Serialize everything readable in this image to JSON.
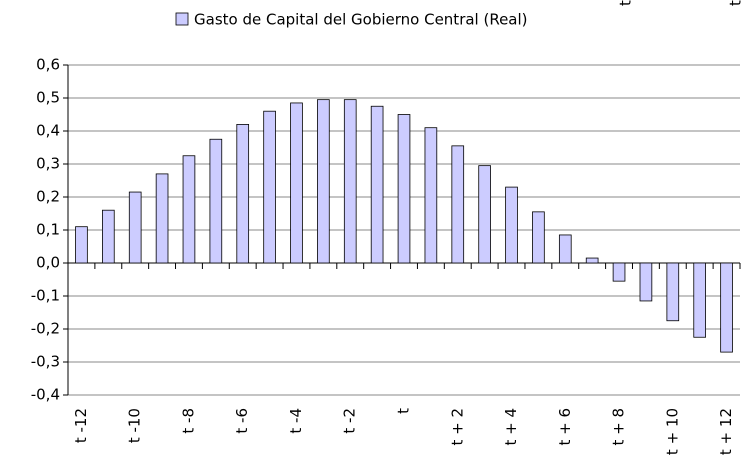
{
  "chart_data": {
    "type": "bar",
    "series": [
      {
        "name": "Gasto de Capital del Gobierno Central (Real)",
        "color": "#ccccff",
        "values": [
          0.11,
          0.16,
          0.215,
          0.27,
          0.325,
          0.375,
          0.42,
          0.46,
          0.485,
          0.495,
          0.495,
          0.475,
          0.45,
          0.41,
          0.355,
          0.295,
          0.23,
          0.155,
          0.085,
          0.015,
          -0.055,
          -0.115,
          -0.175,
          -0.225,
          -0.27
        ]
      }
    ],
    "categories": [
      "t -12",
      null,
      "t -10",
      null,
      "t -8",
      null,
      "t -6",
      null,
      "t -4",
      null,
      "t -2",
      null,
      "t",
      null,
      "t + 2",
      null,
      "t + 4",
      null,
      "t + 6",
      null,
      "t + 8",
      null,
      "t + 10",
      null,
      "t + 12"
    ],
    "annotations": [
      "t",
      "t"
    ],
    "ylim": [
      -0.4,
      0.6
    ],
    "yticks": [
      {
        "value": -0.4,
        "label": "-0,4"
      },
      {
        "value": -0.3,
        "label": "-0,3"
      },
      {
        "value": -0.2,
        "label": "-0,2"
      },
      {
        "value": -0.1,
        "label": "-0,1"
      },
      {
        "value": 0,
        "label": "0,0"
      },
      {
        "value": 0.1,
        "label": "0,1"
      },
      {
        "value": 0.2,
        "label": "0,2"
      },
      {
        "value": 0.3,
        "label": "0,3"
      },
      {
        "value": 0.4,
        "label": "0,4"
      },
      {
        "value": 0.5,
        "label": "0,5"
      },
      {
        "value": 0.6,
        "label": "0,6"
      }
    ],
    "grid": true,
    "legend": "top"
  }
}
